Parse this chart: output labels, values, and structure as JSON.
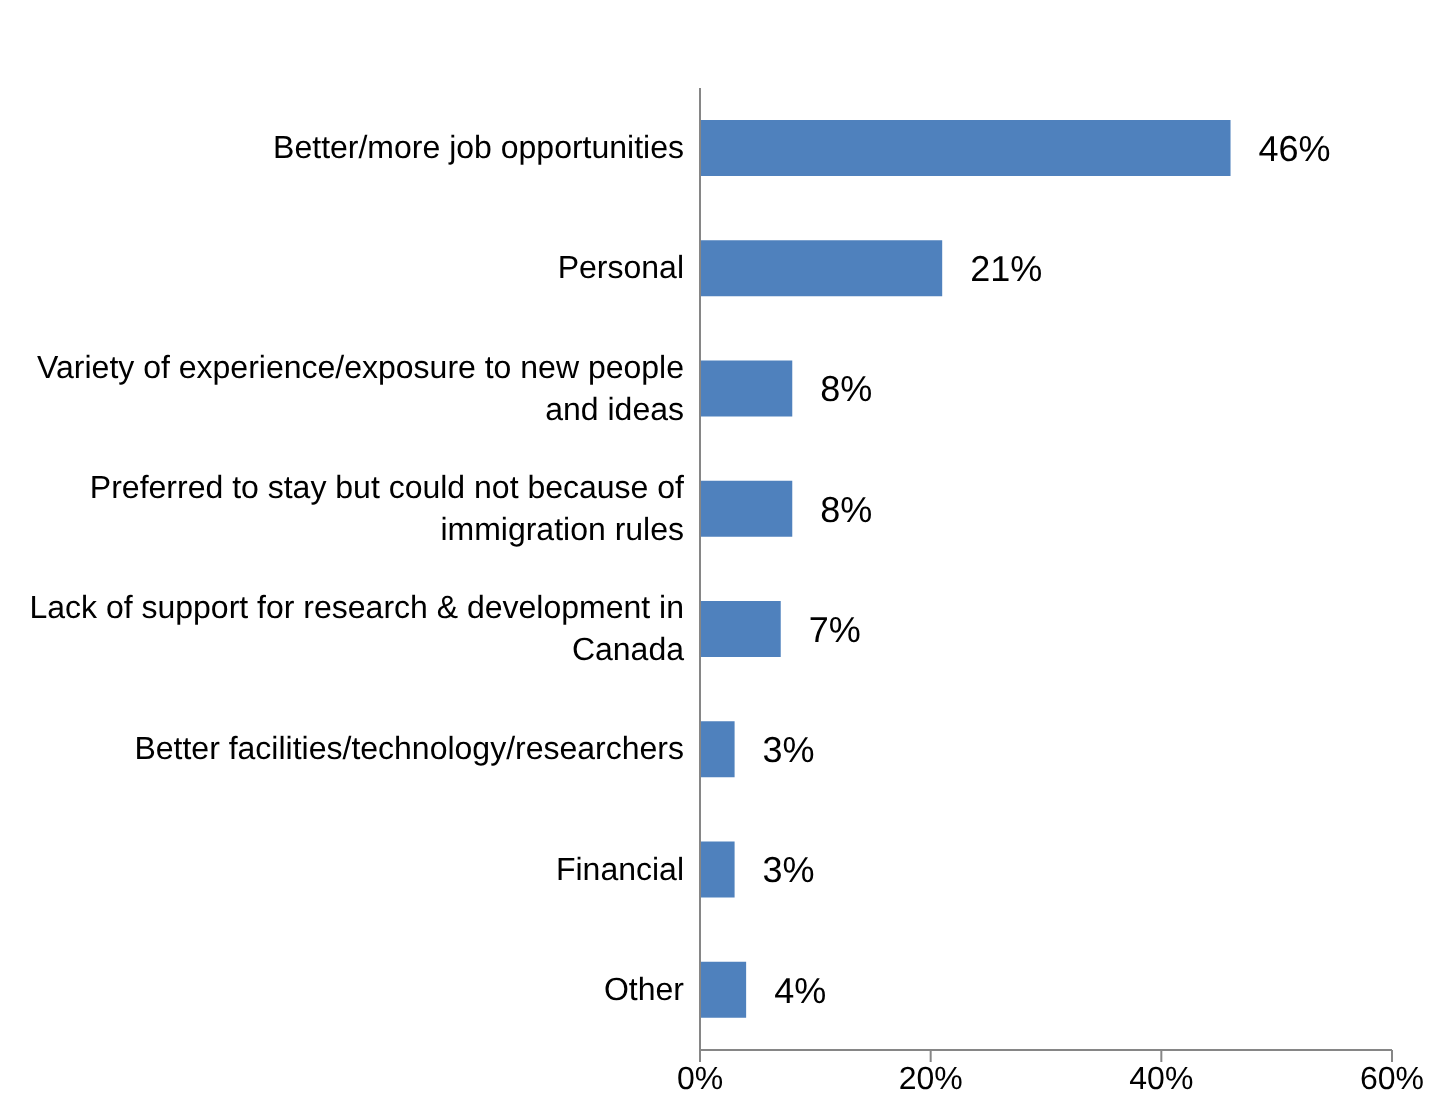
{
  "chart_data": {
    "type": "bar",
    "orientation": "horizontal",
    "categories": [
      "Better/more job opportunities",
      "Personal",
      "Variety of experience/exposure to new people and ideas",
      "Preferred to stay but could not because of immigration rules",
      "Lack of support for research & development in Canada",
      "Better facilities/technology/researchers",
      "Financial",
      "Other"
    ],
    "values": [
      46,
      21,
      8,
      8,
      7,
      3,
      3,
      4
    ],
    "value_labels": [
      "46%",
      "21%",
      "8%",
      "8%",
      "7%",
      "3%",
      "3%",
      "4%"
    ],
    "color": "#4f81bd",
    "xlim": [
      0,
      60
    ],
    "xticks": [
      {
        "value": 0,
        "label": "0%"
      },
      {
        "value": 20,
        "label": "20%"
      },
      {
        "value": 40,
        "label": "40%"
      },
      {
        "value": 60,
        "label": "60%"
      }
    ],
    "grid": false,
    "legend": false
  }
}
